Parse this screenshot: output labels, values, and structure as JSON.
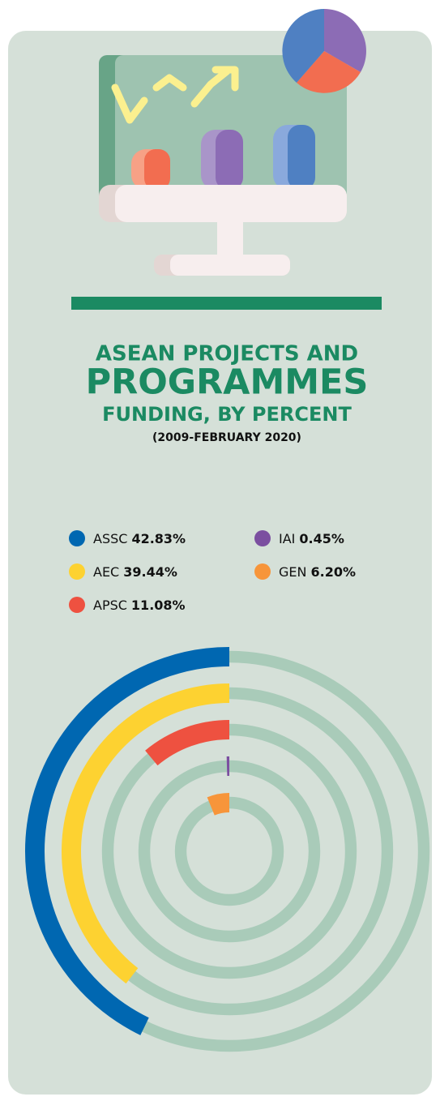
{
  "chart_data": {
    "type": "radial-bar",
    "title_lines": [
      "ASEAN PROJECTS AND",
      "PROGRAMMES",
      "FUNDING, BY PERCENT"
    ],
    "subtitle": "(2009-FEBRUARY 2020)",
    "categories": [
      "ASSC",
      "AEC",
      "APSC",
      "IAI",
      "GEN"
    ],
    "values": [
      42.83,
      39.44,
      11.08,
      0.45,
      6.2
    ],
    "value_labels": [
      "42.83%",
      "39.44%",
      "11.08%",
      "0.45%",
      "6.20%"
    ],
    "colors": [
      "#0067b1",
      "#fdd231",
      "#ee5140",
      "#7b4fa0",
      "#f7953a"
    ],
    "track_color": "#a9cbb9",
    "rlim": [
      0,
      100
    ]
  }
}
